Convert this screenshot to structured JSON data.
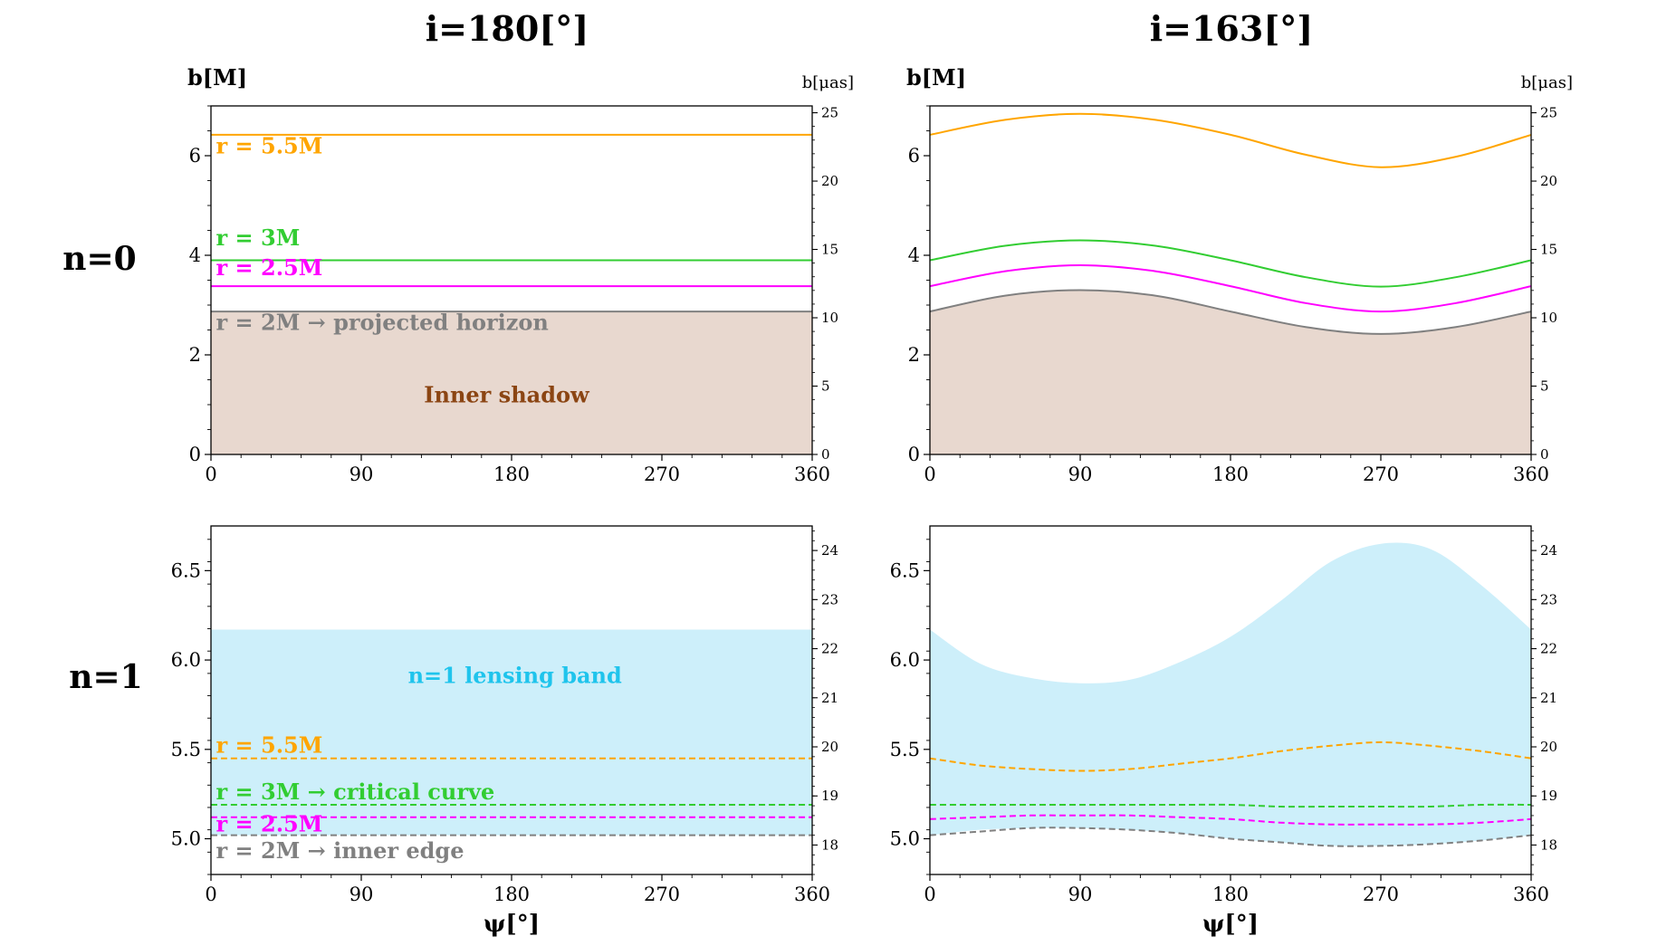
{
  "figure": {
    "column_titles": [
      "i=180[°]",
      "i=163[°]"
    ],
    "row_labels": [
      "n=0",
      "n=1"
    ],
    "xlabel": "ψ[°]",
    "ylabel_left": "b[M]",
    "ylabel_right": "b[μas]"
  },
  "chart_data": [
    {
      "id": "top-left",
      "type": "line",
      "title": "i=180[°]",
      "row": "n=0",
      "xlim": [
        0,
        360
      ],
      "ylim": [
        0,
        7
      ],
      "xticks": [
        0,
        90,
        180,
        270,
        360
      ],
      "yticks": [
        0,
        2,
        4,
        6
      ],
      "ylim_right": [
        0,
        25.5
      ],
      "yticks_right": [
        0,
        5,
        10,
        15,
        20,
        25
      ],
      "xlabel": "",
      "ylabel": "b[M]",
      "ylabel_right": "b[μas]",
      "x": [
        0,
        45,
        90,
        135,
        180,
        225,
        270,
        315,
        360
      ],
      "series": [
        {
          "name": "r = 5.5M",
          "color": "#ffa500",
          "style": "solid",
          "values": [
            6.42,
            6.42,
            6.42,
            6.42,
            6.42,
            6.42,
            6.42,
            6.42,
            6.42
          ]
        },
        {
          "name": "r = 3M",
          "color": "#32cd32",
          "style": "solid",
          "values": [
            3.9,
            3.9,
            3.9,
            3.9,
            3.9,
            3.9,
            3.9,
            3.9,
            3.9
          ]
        },
        {
          "name": "r = 2.5M",
          "color": "#ff00ff",
          "style": "solid",
          "values": [
            3.38,
            3.38,
            3.38,
            3.38,
            3.38,
            3.38,
            3.38,
            3.38,
            3.38
          ]
        },
        {
          "name": "r = 2M → projected horizon",
          "color": "#808080",
          "style": "solid",
          "fill_below": "#e8d8cf",
          "values": [
            2.87,
            2.87,
            2.87,
            2.87,
            2.87,
            2.87,
            2.87,
            2.87,
            2.87
          ]
        }
      ],
      "annotations": [
        {
          "text": "r = 5.5M",
          "color": "#ffa500",
          "x": 3,
          "y": 6.05
        },
        {
          "text": "r = 3M",
          "color": "#32cd32",
          "x": 3,
          "y": 4.2
        },
        {
          "text": "r = 2.5M",
          "color": "#ff00ff",
          "x": 3,
          "y": 3.6
        },
        {
          "text": "r = 2M → projected horizon",
          "color": "#808080",
          "x": 3,
          "y": 2.5
        },
        {
          "text": "Inner shadow",
          "color": "#8b4513",
          "x": 177,
          "y": 1.05
        }
      ]
    },
    {
      "id": "top-right",
      "type": "line",
      "title": "i=163[°]",
      "row": "n=0",
      "xlim": [
        0,
        360
      ],
      "ylim": [
        0,
        7
      ],
      "xticks": [
        0,
        90,
        180,
        270,
        360
      ],
      "yticks": [
        0,
        2,
        4,
        6
      ],
      "ylim_right": [
        0,
        25.5
      ],
      "yticks_right": [
        0,
        5,
        10,
        15,
        20,
        25
      ],
      "xlabel": "",
      "ylabel": "b[M]",
      "ylabel_right": "b[μas]",
      "x": [
        0,
        45,
        90,
        135,
        180,
        225,
        270,
        315,
        360
      ],
      "series": [
        {
          "name": "r = 5.5M",
          "color": "#ffa500",
          "style": "solid",
          "values": [
            6.42,
            6.72,
            6.84,
            6.72,
            6.42,
            6.02,
            5.77,
            5.98,
            6.42
          ]
        },
        {
          "name": "r = 3M",
          "color": "#32cd32",
          "style": "solid",
          "values": [
            3.9,
            4.19,
            4.3,
            4.19,
            3.9,
            3.56,
            3.37,
            3.56,
            3.9
          ]
        },
        {
          "name": "r = 2.5M",
          "color": "#ff00ff",
          "style": "solid",
          "values": [
            3.38,
            3.68,
            3.8,
            3.68,
            3.38,
            3.04,
            2.87,
            3.04,
            3.38
          ]
        },
        {
          "name": "r = 2M",
          "color": "#808080",
          "style": "solid",
          "fill_below": "#e8d8cf",
          "values": [
            2.87,
            3.19,
            3.3,
            3.19,
            2.87,
            2.56,
            2.42,
            2.56,
            2.87
          ]
        }
      ],
      "annotations": []
    },
    {
      "id": "bottom-left",
      "type": "line",
      "row": "n=1",
      "xlim": [
        0,
        360
      ],
      "ylim": [
        4.8,
        6.75
      ],
      "xticks": [
        0,
        90,
        180,
        270,
        360
      ],
      "yticks": [
        5.0,
        5.5,
        6.0,
        6.5
      ],
      "yticklabels": [
        "5.0",
        "5.5",
        "6.0",
        "6.5"
      ],
      "ylim_right": [
        17.4,
        24.5
      ],
      "yticks_right": [
        18,
        19,
        20,
        21,
        22,
        23,
        24
      ],
      "xlabel": "ψ[°]",
      "ylabel": "",
      "x": [
        0,
        45,
        90,
        135,
        180,
        225,
        270,
        315,
        360
      ],
      "band": {
        "name": "n=1 lensing band",
        "color": "#cdeffa",
        "lower": [
          5.02,
          5.02,
          5.02,
          5.02,
          5.02,
          5.02,
          5.02,
          5.02,
          5.02
        ],
        "upper": [
          6.17,
          6.17,
          6.17,
          6.17,
          6.17,
          6.17,
          6.17,
          6.17,
          6.17
        ]
      },
      "series": [
        {
          "name": "r = 5.5M",
          "color": "#ffa500",
          "style": "dashed",
          "values": [
            5.45,
            5.45,
            5.45,
            5.45,
            5.45,
            5.45,
            5.45,
            5.45,
            5.45
          ]
        },
        {
          "name": "r = 3M → critical curve",
          "color": "#32cd32",
          "style": "dashed",
          "values": [
            5.19,
            5.19,
            5.19,
            5.19,
            5.19,
            5.19,
            5.19,
            5.19,
            5.19
          ]
        },
        {
          "name": "r = 2.5M",
          "color": "#ff00ff",
          "style": "dashed",
          "values": [
            5.12,
            5.12,
            5.12,
            5.12,
            5.12,
            5.12,
            5.12,
            5.12,
            5.12
          ]
        },
        {
          "name": "r = 2M → inner edge",
          "color": "#808080",
          "style": "dashed",
          "values": [
            5.02,
            5.02,
            5.02,
            5.02,
            5.02,
            5.02,
            5.02,
            5.02,
            5.02
          ]
        }
      ],
      "annotations": [
        {
          "text": "n=1 lensing band",
          "color": "#1fc4ec",
          "x": 182,
          "y": 5.87
        },
        {
          "text": "r = 5.5M",
          "color": "#ffa500",
          "x": 3,
          "y": 5.48
        },
        {
          "text": "r = 3M → critical curve",
          "color": "#32cd32",
          "x": 3,
          "y": 5.22
        },
        {
          "text": "r = 2.5M",
          "color": "#ff00ff",
          "x": 3,
          "y": 5.04
        },
        {
          "text": "r = 2M → inner edge",
          "color": "#808080",
          "x": 3,
          "y": 4.89
        }
      ]
    },
    {
      "id": "bottom-right",
      "type": "line",
      "row": "n=1",
      "xlim": [
        0,
        360
      ],
      "ylim": [
        4.8,
        6.75
      ],
      "xticks": [
        0,
        90,
        180,
        270,
        360
      ],
      "yticks": [
        5.0,
        5.5,
        6.0,
        6.5
      ],
      "yticklabels": [
        "5.0",
        "5.5",
        "6.0",
        "6.5"
      ],
      "ylim_right": [
        17.4,
        24.5
      ],
      "yticks_right": [
        18,
        19,
        20,
        21,
        22,
        23,
        24
      ],
      "xlabel": "ψ[°]",
      "ylabel": "",
      "x": [
        0,
        30,
        60,
        90,
        120,
        150,
        180,
        210,
        240,
        270,
        300,
        330,
        360
      ],
      "band": {
        "color": "#cdeffa",
        "lower": [
          5.02,
          5.05,
          5.06,
          5.06,
          5.05,
          5.03,
          5.0,
          4.98,
          4.96,
          4.96,
          4.97,
          4.99,
          5.02
        ],
        "upper": [
          6.17,
          5.98,
          5.9,
          5.87,
          5.89,
          5.99,
          6.13,
          6.33,
          6.55,
          6.65,
          6.62,
          6.42,
          6.17
        ]
      },
      "series": [
        {
          "name": "r = 5.5M",
          "color": "#ffa500",
          "style": "dashed",
          "values": [
            5.45,
            5.41,
            5.39,
            5.38,
            5.39,
            5.42,
            5.45,
            5.49,
            5.52,
            5.54,
            5.52,
            5.49,
            5.45
          ]
        },
        {
          "name": "r = 3M",
          "color": "#32cd32",
          "style": "dashed",
          "values": [
            5.19,
            5.19,
            5.19,
            5.19,
            5.19,
            5.19,
            5.19,
            5.18,
            5.18,
            5.18,
            5.18,
            5.19,
            5.19
          ]
        },
        {
          "name": "r = 2.5M",
          "color": "#ff00ff",
          "style": "dashed",
          "values": [
            5.11,
            5.12,
            5.13,
            5.13,
            5.13,
            5.12,
            5.11,
            5.09,
            5.08,
            5.08,
            5.08,
            5.09,
            5.11
          ]
        },
        {
          "name": "r = 2M",
          "color": "#808080",
          "style": "dashed",
          "values": [
            5.02,
            5.04,
            5.06,
            5.06,
            5.05,
            5.03,
            5.0,
            4.98,
            4.96,
            4.96,
            4.97,
            4.99,
            5.02
          ]
        }
      ],
      "annotations": []
    }
  ]
}
